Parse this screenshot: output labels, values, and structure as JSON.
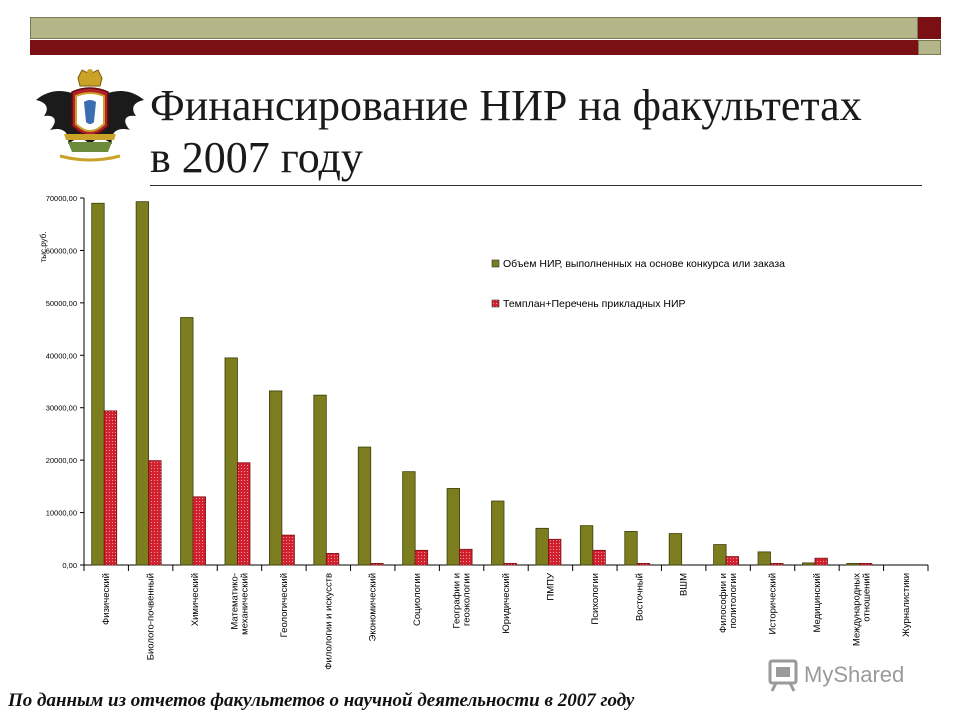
{
  "slide": {
    "title_line1": "Финансирование НИР на факультетах",
    "title_line2": "в 2007 году",
    "footer": "По данным из отчетов факультетов о научной деятельности в 2007 году",
    "watermark": "MyShared"
  },
  "colors": {
    "series1": "#7b7d1e",
    "series2": "#d2202e",
    "frame_dark_red": "#7a0f14",
    "frame_olive": "#b5b58a"
  },
  "chart_data": {
    "type": "bar",
    "ylabel": "тыс.руб.",
    "ylim": [
      0,
      70000
    ],
    "yticks": [
      "0,00",
      "10000,00",
      "20000,00",
      "30000,00",
      "40000,00",
      "50000,00",
      "60000,00",
      "70000,00"
    ],
    "legend_position": "top-right",
    "categories": [
      [
        "Физический"
      ],
      [
        "Биолого-почвенный"
      ],
      [
        "Химический"
      ],
      [
        "Математико-",
        "механический"
      ],
      [
        "Геологический"
      ],
      [
        "Филологии и искусств"
      ],
      [
        "Экономический"
      ],
      [
        "Социологии"
      ],
      [
        "Географии и",
        "геоэкологии"
      ],
      [
        "Юридический"
      ],
      [
        "ПМПУ"
      ],
      [
        "Психологии"
      ],
      [
        "Восточный"
      ],
      [
        "ВШМ"
      ],
      [
        "Философии и",
        "политологии"
      ],
      [
        "Исторический"
      ],
      [
        "Медицинский"
      ],
      [
        "Международных",
        "отношений"
      ],
      [
        "Журналистики"
      ]
    ],
    "series": [
      {
        "name": "Объем НИР, выполненных на основе конкурса или заказа",
        "values": [
          69000,
          69300,
          47200,
          39500,
          33200,
          32400,
          22500,
          17800,
          14600,
          12200,
          7000,
          7500,
          6400,
          6000,
          3900,
          2500,
          400,
          300,
          0
        ]
      },
      {
        "name": "Темплан+Перечень прикладных НИР",
        "values": [
          29400,
          19900,
          13000,
          19500,
          5700,
          2200,
          300,
          2800,
          3000,
          300,
          4900,
          2800,
          300,
          0,
          1600,
          300,
          1300,
          300,
          0
        ]
      }
    ]
  }
}
